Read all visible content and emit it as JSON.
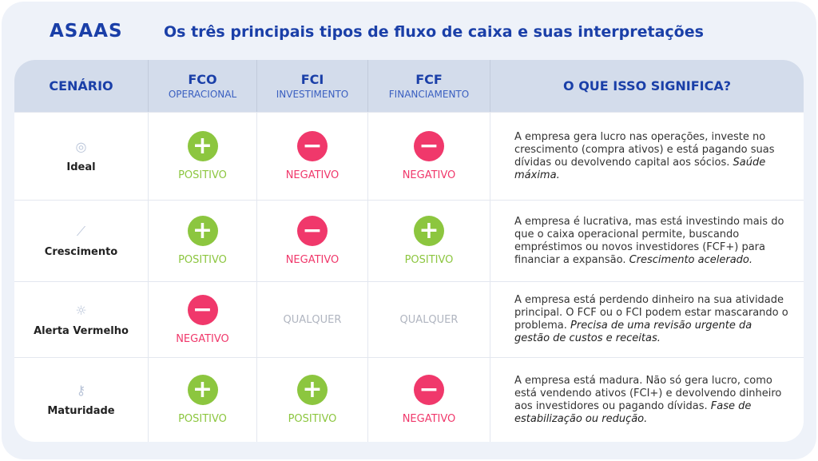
{
  "brand": {
    "logo": "ASAAS"
  },
  "title": "Os três principais tipos de fluxo de caixa e suas interpretações",
  "colors": {
    "positive": "#8cc63f",
    "negative": "#f0386b",
    "neutral": "#b0b5c0",
    "accent": "#1a3fa8"
  },
  "headers": [
    {
      "main": "CENÁRIO",
      "sub": ""
    },
    {
      "main": "FCO",
      "sub": "OPERACIONAL"
    },
    {
      "main": "FCI",
      "sub": "INVESTIMENTO"
    },
    {
      "main": "FCF",
      "sub": "FINANCIAMENTO"
    },
    {
      "main": "O QUE ISSO SIGNIFICA?",
      "sub": ""
    }
  ],
  "rows": [
    {
      "icon": "target-icon",
      "scenario": "Ideal",
      "values": [
        {
          "type": "positive",
          "label": "POSITIVO"
        },
        {
          "type": "negative",
          "label": "NEGATIVO"
        },
        {
          "type": "negative",
          "label": "NEGATIVO"
        }
      ],
      "description": "A empresa gera lucro nas operações, investe no crescimento (compra ativos) e está pagando suas dívidas ou devolvendo capital aos sócios.",
      "emphasis": "Saúde máxima."
    },
    {
      "icon": "chart-line-icon",
      "scenario": "Crescimento",
      "values": [
        {
          "type": "positive",
          "label": "POSITIVO"
        },
        {
          "type": "negative",
          "label": "NEGATIVO"
        },
        {
          "type": "positive",
          "label": "POSITIVO"
        }
      ],
      "description": "A empresa é lucrativa, mas está investindo mais do que o caixa operacional permite, buscando empréstimos ou novos investidores (FCF+) para financiar a expansão.",
      "emphasis": "Crescimento acelerado."
    },
    {
      "icon": "lightbulb-icon",
      "scenario": "Alerta Vermelho",
      "values": [
        {
          "type": "negative",
          "label": "NEGATIVO"
        },
        {
          "type": "neutral",
          "label": "QUALQUER"
        },
        {
          "type": "neutral",
          "label": "QUALQUER"
        }
      ],
      "description": "A empresa está perdendo dinheiro na sua atividade principal. O FCF ou o FCI podem estar mascarando o problema.",
      "emphasis": "Precisa de uma revisão urgente da gestão de custos e receitas."
    },
    {
      "icon": "key-icon",
      "scenario": "Maturidade",
      "values": [
        {
          "type": "positive",
          "label": "POSITIVO"
        },
        {
          "type": "positive",
          "label": "POSITIVO"
        },
        {
          "type": "negative",
          "label": "NEGATIVO"
        }
      ],
      "description": "A empresa está madura. Não só gera lucro, como está vendendo ativos (FCI+) e devolvendo dinheiro aos investidores ou pagando dívidas.",
      "emphasis": "Fase de estabilização ou redução."
    }
  ]
}
